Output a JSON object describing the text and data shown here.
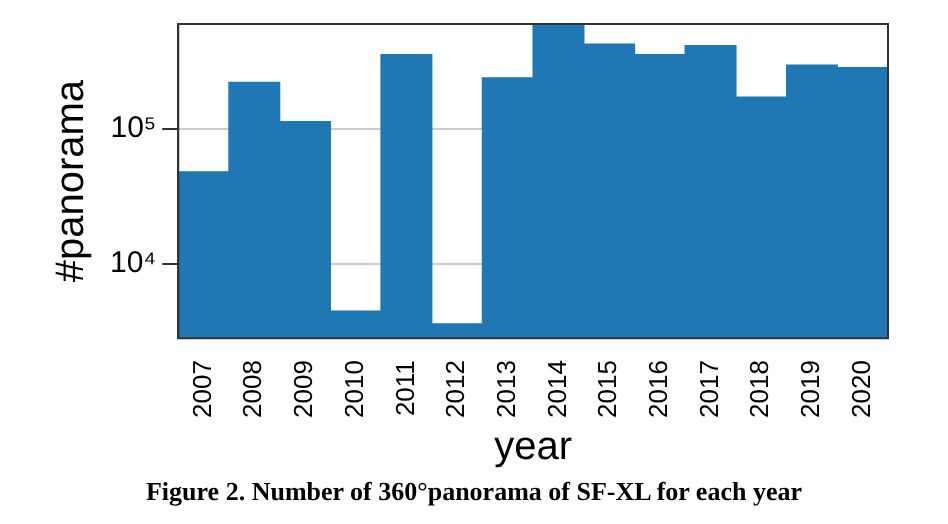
{
  "chart_data": {
    "type": "bar",
    "xlabel": "year",
    "ylabel": "#panorama",
    "categories": [
      "2007",
      "2008",
      "2009",
      "2010",
      "2011",
      "2012",
      "2013",
      "2014",
      "2015",
      "2016",
      "2017",
      "2018",
      "2019",
      "2020"
    ],
    "values": [
      48000,
      221000,
      113000,
      4450,
      355000,
      3570,
      239000,
      600000,
      425000,
      355000,
      415000,
      172000,
      297000,
      284000
    ],
    "color": "#1f77b4",
    "log": true,
    "ylim": [
      2800,
      600000
    ],
    "yticks": [
      {
        "value": 10000,
        "label": "10⁴"
      },
      {
        "value": 100000,
        "label": "10⁵"
      }
    ],
    "grid": "y",
    "legend": false,
    "annotations": [
      "Figure 2. Number of 360°panorama of SF-XL for each year"
    ]
  }
}
